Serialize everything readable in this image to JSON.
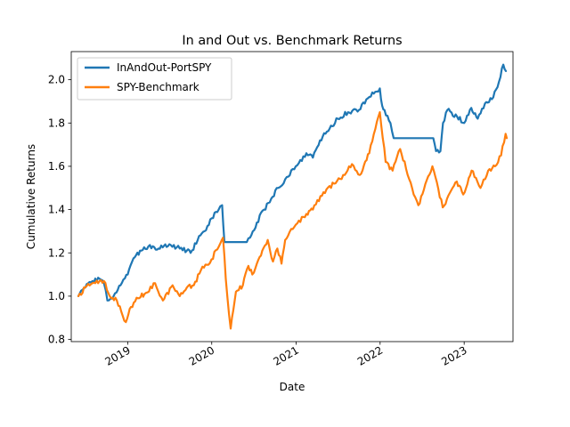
{
  "chart_data": {
    "type": "line",
    "title": "In and Out vs. Benchmark Returns",
    "xlabel": "Date",
    "ylabel": "Cumulative Returns",
    "x_ticks": [
      "2019",
      "2020",
      "2021",
      "2022",
      "2023"
    ],
    "y_ticks": [
      "0.8",
      "1.0",
      "1.2",
      "1.4",
      "1.6",
      "1.8",
      "2.0"
    ],
    "xlim": [
      "2018-05-01",
      "2023-08-01"
    ],
    "ylim": [
      0.79,
      2.13
    ],
    "legend_placement": "upper-left",
    "grid": false,
    "series": [
      {
        "name": "InAndOut-PortSPY",
        "color": "#1f77b4",
        "points": [
          [
            "2018-06-01",
            1.0
          ],
          [
            "2018-07-01",
            1.04
          ],
          [
            "2018-08-01",
            1.07
          ],
          [
            "2018-09-01",
            1.08
          ],
          [
            "2018-09-20",
            1.06
          ],
          [
            "2018-10-05",
            0.98
          ],
          [
            "2018-11-01",
            1.0
          ],
          [
            "2018-12-01",
            1.05
          ],
          [
            "2019-01-01",
            1.1
          ],
          [
            "2019-02-01",
            1.18
          ],
          [
            "2019-03-01",
            1.21
          ],
          [
            "2019-04-01",
            1.23
          ],
          [
            "2019-05-15",
            1.22
          ],
          [
            "2019-07-01",
            1.24
          ],
          [
            "2019-08-15",
            1.22
          ],
          [
            "2019-09-15",
            1.21
          ],
          [
            "2019-10-01",
            1.2
          ],
          [
            "2019-11-01",
            1.26
          ],
          [
            "2019-12-01",
            1.3
          ],
          [
            "2020-01-01",
            1.36
          ],
          [
            "2020-01-31",
            1.4
          ],
          [
            "2020-02-15",
            1.42
          ],
          [
            "2020-02-25",
            1.25
          ],
          [
            "2020-06-01",
            1.25
          ],
          [
            "2020-06-15",
            1.27
          ],
          [
            "2020-07-15",
            1.34
          ],
          [
            "2020-08-15",
            1.4
          ],
          [
            "2020-09-15",
            1.45
          ],
          [
            "2020-10-15",
            1.5
          ],
          [
            "2020-11-15",
            1.54
          ],
          [
            "2020-12-31",
            1.6
          ],
          [
            "2021-02-15",
            1.66
          ],
          [
            "2021-03-15",
            1.64
          ],
          [
            "2021-04-15",
            1.72
          ],
          [
            "2021-05-15",
            1.76
          ],
          [
            "2021-07-01",
            1.82
          ],
          [
            "2021-08-15",
            1.85
          ],
          [
            "2021-10-01",
            1.86
          ],
          [
            "2021-11-15",
            1.92
          ],
          [
            "2021-12-31",
            1.96
          ],
          [
            "2022-01-10",
            1.88
          ],
          [
            "2022-01-20",
            1.86
          ],
          [
            "2022-02-15",
            1.8
          ],
          [
            "2022-03-01",
            1.73
          ],
          [
            "2022-07-01",
            1.73
          ],
          [
            "2022-08-20",
            1.73
          ],
          [
            "2022-09-01",
            1.67
          ],
          [
            "2022-09-20",
            1.67
          ],
          [
            "2022-10-01",
            1.8
          ],
          [
            "2022-10-20",
            1.86
          ],
          [
            "2022-12-01",
            1.83
          ],
          [
            "2023-01-01",
            1.8
          ],
          [
            "2023-02-01",
            1.87
          ],
          [
            "2023-03-01",
            1.82
          ],
          [
            "2023-04-01",
            1.89
          ],
          [
            "2023-05-01",
            1.91
          ],
          [
            "2023-06-01",
            1.99
          ],
          [
            "2023-06-20",
            2.07
          ],
          [
            "2023-07-01",
            2.04
          ]
        ]
      },
      {
        "name": "SPY-Benchmark",
        "color": "#ff7f0e",
        "points": [
          [
            "2018-06-01",
            1.0
          ],
          [
            "2018-07-01",
            1.04
          ],
          [
            "2018-08-01",
            1.06
          ],
          [
            "2018-09-01",
            1.07
          ],
          [
            "2018-09-20",
            1.07
          ],
          [
            "2018-10-15",
            1.0
          ],
          [
            "2018-11-15",
            0.98
          ],
          [
            "2018-12-24",
            0.88
          ],
          [
            "2019-01-15",
            0.95
          ],
          [
            "2019-02-15",
            0.99
          ],
          [
            "2019-03-15",
            1.01
          ],
          [
            "2019-04-30",
            1.06
          ],
          [
            "2019-06-03",
            0.98
          ],
          [
            "2019-07-15",
            1.05
          ],
          [
            "2019-08-15",
            1.0
          ],
          [
            "2019-09-15",
            1.04
          ],
          [
            "2019-10-15",
            1.05
          ],
          [
            "2019-11-15",
            1.12
          ],
          [
            "2019-12-31",
            1.17
          ],
          [
            "2020-02-19",
            1.27
          ],
          [
            "2020-03-02",
            1.08
          ],
          [
            "2020-03-23",
            0.85
          ],
          [
            "2020-04-15",
            1.02
          ],
          [
            "2020-05-15",
            1.05
          ],
          [
            "2020-06-08",
            1.14
          ],
          [
            "2020-06-25",
            1.1
          ],
          [
            "2020-07-15",
            1.15
          ],
          [
            "2020-08-31",
            1.26
          ],
          [
            "2020-09-23",
            1.16
          ],
          [
            "2020-10-12",
            1.22
          ],
          [
            "2020-10-30",
            1.15
          ],
          [
            "2020-11-15",
            1.26
          ],
          [
            "2020-12-31",
            1.33
          ],
          [
            "2021-02-15",
            1.38
          ],
          [
            "2021-03-15",
            1.4
          ],
          [
            "2021-04-30",
            1.48
          ],
          [
            "2021-06-15",
            1.52
          ],
          [
            "2021-07-31",
            1.56
          ],
          [
            "2021-09-01",
            1.61
          ],
          [
            "2021-10-05",
            1.56
          ],
          [
            "2021-11-15",
            1.66
          ],
          [
            "2021-12-31",
            1.85
          ],
          [
            "2022-01-25",
            1.62
          ],
          [
            "2022-02-24",
            1.58
          ],
          [
            "2022-03-29",
            1.68
          ],
          [
            "2022-05-20",
            1.5
          ],
          [
            "2022-06-16",
            1.42
          ],
          [
            "2022-08-16",
            1.6
          ],
          [
            "2022-09-30",
            1.41
          ],
          [
            "2022-11-30",
            1.53
          ],
          [
            "2022-12-28",
            1.47
          ],
          [
            "2023-02-02",
            1.58
          ],
          [
            "2023-03-13",
            1.5
          ],
          [
            "2023-04-15",
            1.58
          ],
          [
            "2023-05-15",
            1.6
          ],
          [
            "2023-06-10",
            1.65
          ],
          [
            "2023-06-30",
            1.75
          ],
          [
            "2023-07-05",
            1.73
          ]
        ]
      }
    ]
  }
}
